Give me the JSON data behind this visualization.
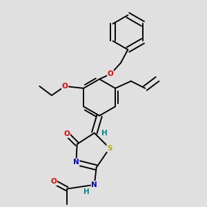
{
  "background_color": "#e0e0e0",
  "atom_colors": {
    "C": "#000000",
    "N": "#0000ee",
    "O": "#ee0000",
    "S": "#bbaa00",
    "H": "#008888"
  },
  "bond_color": "#000000",
  "figsize": [
    3.0,
    3.0
  ],
  "dpi": 100
}
